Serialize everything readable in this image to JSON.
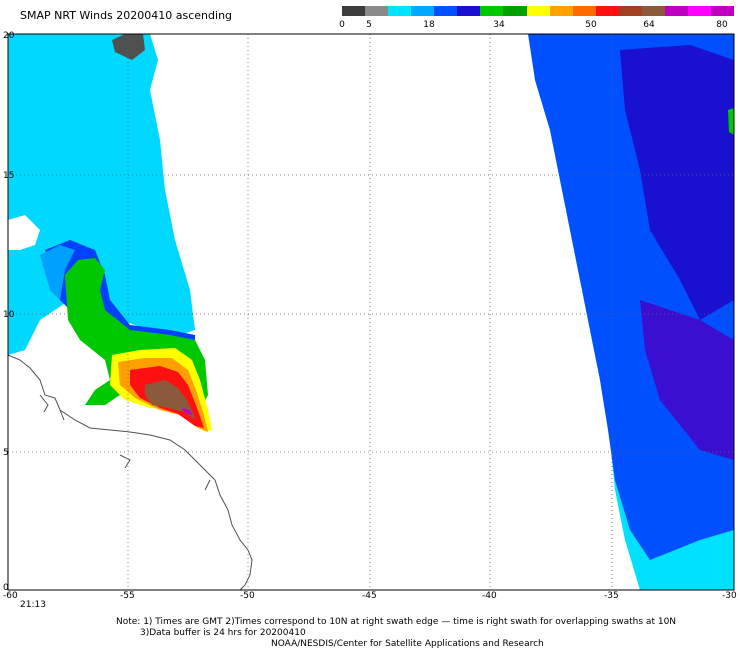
{
  "title": "SMAP NRT Winds 20200410 ascending",
  "colorbar": {
    "labels": [
      "0",
      "5",
      "18",
      "34",
      "50",
      "64",
      "80"
    ],
    "segments": [
      "#3c3c3c",
      "#8a8a8a",
      "#00e5ff",
      "#00a8ff",
      "#0050ff",
      "#1a10d0",
      "#00c800",
      "#00a000",
      "#ffff00",
      "#ffa000",
      "#ff6a00",
      "#ff1010",
      "#a04020",
      "#8b5a3c",
      "#c000c0",
      "#ff00ff",
      "#c000c0"
    ]
  },
  "axes": {
    "x_ticks": [
      "-60",
      "-55",
      "-50",
      "-45",
      "-40",
      "-35",
      "-30"
    ],
    "y_ticks": [
      "0",
      "5",
      "10",
      "15",
      "20"
    ]
  },
  "time_label": "21:13",
  "note": {
    "line1": "Note: 1) Times are GMT 2)Times correspond to 10N at right swath edge — time is right swath for overlapping swaths at 10N",
    "line2": "3)Data buffer is 24 hrs for 20200410",
    "line3": "NOAA/NESDIS/Center for Satellite Applications and Research"
  }
}
